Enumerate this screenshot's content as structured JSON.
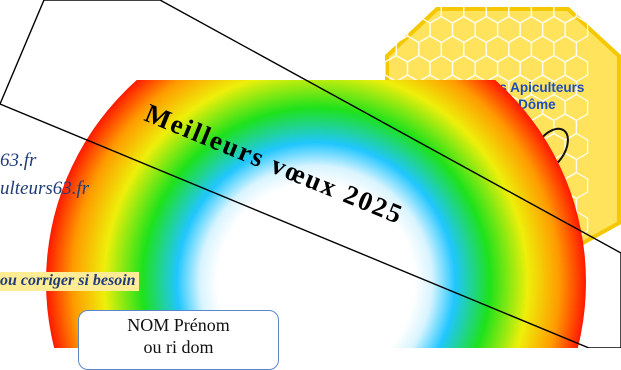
{
  "contact": {
    "line1": "63.fr",
    "line2": "ulteurs63.fr"
  },
  "notice": "ou corriger si besoin",
  "name_box": {
    "label": "NOM  Prénom",
    "second_line": "ou ri dom"
  },
  "banner": {
    "text": "Meilleurs vœux 2025"
  },
  "logo": {
    "line1": "Syndicat des Apiculteurs",
    "line2": "du Puy-de-Dôme"
  },
  "colors": {
    "text_blue": "#1f3c78",
    "notice_bg": "#ffec94",
    "honey": "#ffe35c",
    "honey_border": "#f6c800",
    "logo_text": "#1b4cc0"
  }
}
